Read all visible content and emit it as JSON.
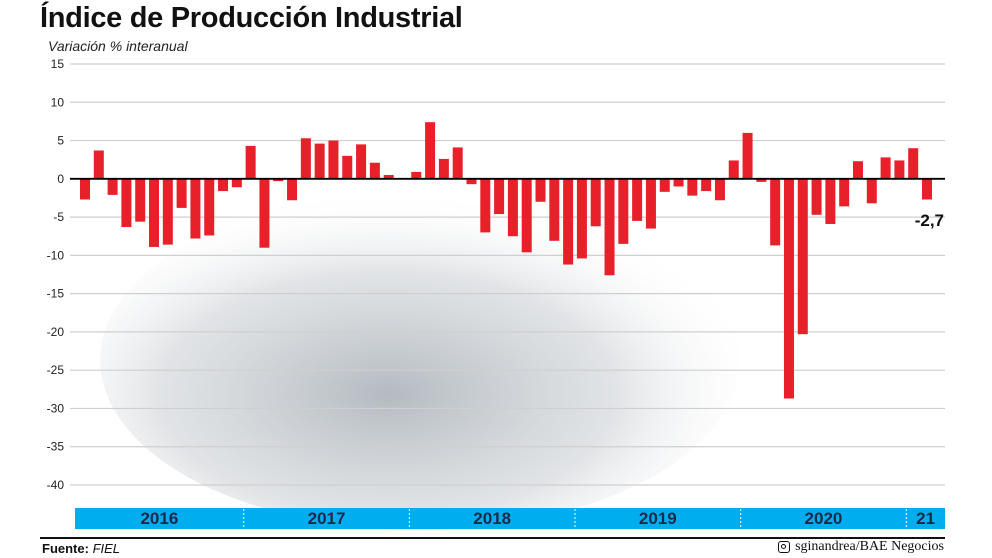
{
  "chart_data": {
    "type": "bar",
    "title": "Índice de Producción Industrial",
    "ylabel": "Variación % interanual",
    "ylim": [
      -40,
      15
    ],
    "yticks": [
      15,
      10,
      5,
      0,
      -5,
      -10,
      -15,
      -20,
      -25,
      -30,
      -35,
      -40
    ],
    "grid": true,
    "bar_color": "#e8202a",
    "band_color": "#00aeef",
    "year_bands": [
      {
        "label": "2016",
        "start": 0,
        "end": 12
      },
      {
        "label": "2017",
        "start": 12,
        "end": 24
      },
      {
        "label": "2018",
        "start": 24,
        "end": 36
      },
      {
        "label": "2019",
        "start": 36,
        "end": 48
      },
      {
        "label": "2020",
        "start": 48,
        "end": 60
      },
      {
        "label": "21",
        "start": 60,
        "end": 62
      }
    ],
    "values": [
      -2.7,
      3.7,
      -2.1,
      -6.3,
      -5.6,
      -8.9,
      -8.6,
      -3.8,
      -7.8,
      -7.4,
      -1.6,
      -1.1,
      4.3,
      -9.0,
      -0.3,
      -2.8,
      5.3,
      4.6,
      5.0,
      3.0,
      4.5,
      2.1,
      0.5,
      0.0,
      0.9,
      7.4,
      2.6,
      4.1,
      -0.7,
      -7.0,
      -4.6,
      -7.5,
      -9.6,
      -3.0,
      -8.1,
      -11.2,
      -10.4,
      -6.2,
      -12.6,
      -8.5,
      -5.5,
      -6.5,
      -1.7,
      -1.0,
      -2.2,
      -1.6,
      -2.8,
      2.4,
      6.0,
      -0.4,
      -8.7,
      -28.7,
      -20.3,
      -4.7,
      -5.9,
      -3.6,
      2.3,
      -3.2,
      2.8,
      2.4,
      4.0,
      -2.7
    ],
    "annotation": "-2,7"
  },
  "footer": {
    "source_label": "Fuente:",
    "source_value": "FIEL",
    "credit": "sginandrea/BAE Negocios",
    "credit_icon": "instagram-icon"
  }
}
